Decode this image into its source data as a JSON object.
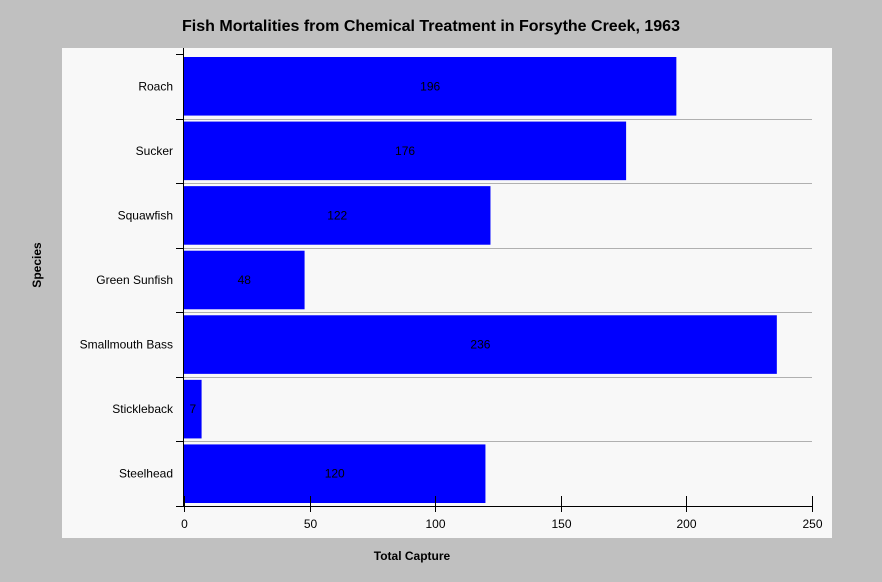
{
  "chart_data": {
    "type": "bar",
    "orientation": "horizontal",
    "title": "Fish Mortalities from Chemical Treatment in Forsythe Creek, 1963",
    "xlabel": "Total Capture",
    "ylabel": "Species",
    "categories": [
      "Roach",
      "Sucker",
      "Squawfish",
      "Green Sunfish",
      "Smallmouth Bass",
      "Stickleback",
      "Steelhead"
    ],
    "values": [
      196,
      176,
      122,
      48,
      236,
      7,
      120
    ],
    "xlim": [
      0,
      250
    ],
    "xticks": [
      0,
      50,
      100,
      150,
      200,
      250
    ],
    "grid": true,
    "bar_color": "#0000ff",
    "background_color": "#c0c0c0",
    "plot_background_color": "#f8f8f8",
    "grid_color": "#b0b0b0"
  }
}
